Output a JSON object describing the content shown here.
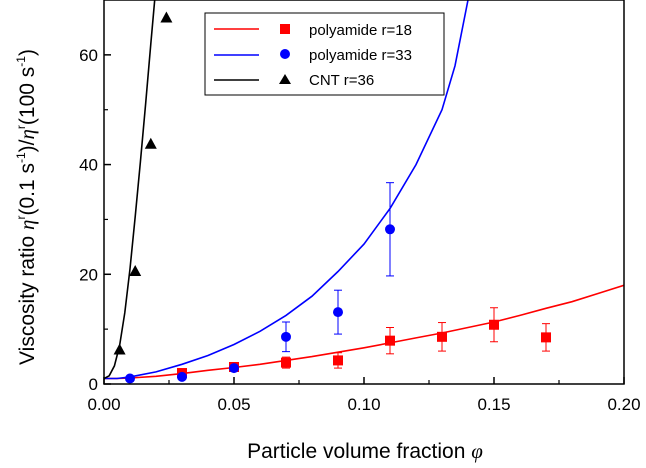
{
  "chart_data": {
    "type": "scatter",
    "xlabel": "Particle volume fraction",
    "xlabel_symbol": "φ",
    "ylabel": {
      "prefix": "Viscosity ratio ",
      "eta1": "η",
      "sup1": "r",
      "mid1": "(0.1 s",
      "sup2": "-1",
      "mid2": ")/",
      "eta2": "η",
      "sup3": "r",
      "mid3": "(100 s",
      "sup4": "-1",
      "end": ")"
    },
    "xlim": [
      0,
      0.2
    ],
    "ylim": [
      0,
      70
    ],
    "xticks": [
      "0.00",
      "0.05",
      "0.10",
      "0.15",
      "0.20"
    ],
    "xtick_values": [
      0,
      0.05,
      0.1,
      0.15,
      0.2
    ],
    "yticks": [
      "0",
      "20",
      "40",
      "60"
    ],
    "ytick_values": [
      0,
      20,
      40,
      60
    ],
    "grid": false,
    "legend_position": "top-right",
    "series": [
      {
        "name": "polyamide r=18",
        "color": "#ff0000",
        "marker": "square",
        "points": [
          {
            "x": 0.03,
            "y": 2.0,
            "err": 0.6
          },
          {
            "x": 0.05,
            "y": 3.1,
            "err": 0.6
          },
          {
            "x": 0.07,
            "y": 3.9,
            "err": 1.0
          },
          {
            "x": 0.09,
            "y": 4.3,
            "err": 1.4
          },
          {
            "x": 0.11,
            "y": 7.9,
            "err": 2.4
          },
          {
            "x": 0.13,
            "y": 8.6,
            "err": 2.6
          },
          {
            "x": 0.15,
            "y": 10.8,
            "err": 3.1
          },
          {
            "x": 0.17,
            "y": 8.5,
            "err": 2.5
          }
        ],
        "curve": {
          "x": [
            0,
            0.005,
            0.01,
            0.02,
            0.03,
            0.04,
            0.05,
            0.06,
            0.07,
            0.08,
            0.09,
            0.1,
            0.11,
            0.12,
            0.13,
            0.14,
            0.15,
            0.16,
            0.17,
            0.18,
            0.19,
            0.2
          ],
          "y": [
            1.0,
            1.0,
            1.1,
            1.4,
            1.9,
            2.5,
            3.0,
            3.6,
            4.3,
            5.0,
            5.8,
            6.6,
            7.5,
            8.4,
            9.3,
            10.3,
            11.3,
            12.5,
            13.8,
            15.0,
            16.5,
            18.0
          ]
        }
      },
      {
        "name": "polyamide r=33",
        "color": "#0000ff",
        "marker": "circle",
        "points": [
          {
            "x": 0.01,
            "y": 1.0,
            "err": 0
          },
          {
            "x": 0.03,
            "y": 1.3,
            "err": 0
          },
          {
            "x": 0.05,
            "y": 2.9,
            "err": 0.5
          },
          {
            "x": 0.07,
            "y": 8.6,
            "err": 2.7
          },
          {
            "x": 0.09,
            "y": 13.1,
            "err": 4.0
          },
          {
            "x": 0.11,
            "y": 28.2,
            "err": 8.5
          }
        ],
        "curve": {
          "x": [
            0,
            0.005,
            0.01,
            0.02,
            0.03,
            0.04,
            0.05,
            0.06,
            0.07,
            0.08,
            0.09,
            0.1,
            0.11,
            0.12,
            0.13,
            0.135,
            0.14
          ],
          "y": [
            1.0,
            1.0,
            1.3,
            2.2,
            3.6,
            5.2,
            7.2,
            9.6,
            12.5,
            16.0,
            20.5,
            25.5,
            32.0,
            40.0,
            50.0,
            58.0,
            70.0
          ]
        }
      },
      {
        "name": "CNT r=36",
        "color": "#000000",
        "marker": "triangle",
        "points": [
          {
            "x": 0.006,
            "y": 6.3,
            "err": 0
          },
          {
            "x": 0.012,
            "y": 20.6,
            "err": 0
          },
          {
            "x": 0.018,
            "y": 43.8,
            "err": 0
          },
          {
            "x": 0.024,
            "y": 66.8,
            "err": 0
          }
        ],
        "curve": {
          "x": [
            0,
            0.002,
            0.004,
            0.006,
            0.008,
            0.01,
            0.012,
            0.014,
            0.016,
            0.018,
            0.0195
          ],
          "y": [
            1.0,
            1.5,
            3.3,
            7.0,
            13.0,
            21.0,
            30.5,
            40.5,
            51.0,
            62.0,
            70.0
          ]
        }
      }
    ]
  }
}
